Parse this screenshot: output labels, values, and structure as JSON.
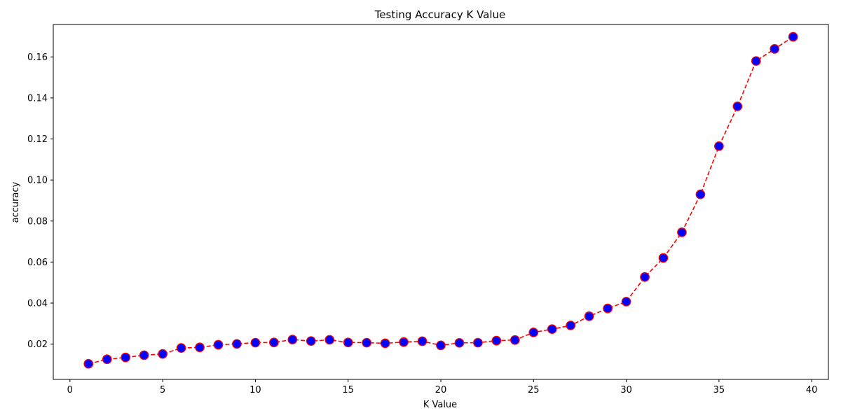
{
  "chart_data": {
    "type": "line",
    "title": "Testing Accuracy K Value",
    "xlabel": "K Value",
    "ylabel": "accuracy",
    "xlim": [
      -0.9,
      40.9
    ],
    "ylim": [
      0.0028,
      0.1758
    ],
    "xticks": [
      0,
      5,
      10,
      15,
      20,
      25,
      30,
      35,
      40
    ],
    "yticks": [
      0.02,
      0.04,
      0.06,
      0.08,
      0.1,
      0.12,
      0.14,
      0.16
    ],
    "ytick_labels": [
      "0.02",
      "0.04",
      "0.06",
      "0.08",
      "0.10",
      "0.12",
      "0.14",
      "0.16"
    ],
    "grid": false,
    "series": [
      {
        "line_color": "#ff0000",
        "line_style": "dashed",
        "marker": "circle",
        "marker_face_color": "#0000ff",
        "marker_edge_color": "#ff0000",
        "x": [
          1,
          2,
          3,
          4,
          5,
          6,
          7,
          8,
          9,
          10,
          11,
          12,
          13,
          14,
          15,
          16,
          17,
          18,
          19,
          20,
          21,
          22,
          23,
          24,
          25,
          26,
          27,
          28,
          29,
          30,
          31,
          32,
          33,
          34,
          35,
          36,
          37,
          38,
          39
        ],
        "y": [
          0.0104,
          0.0126,
          0.0135,
          0.0146,
          0.0152,
          0.0181,
          0.0184,
          0.0197,
          0.0201,
          0.0207,
          0.0208,
          0.0222,
          0.0215,
          0.0221,
          0.0208,
          0.0207,
          0.0204,
          0.021,
          0.0214,
          0.0194,
          0.0206,
          0.0207,
          0.0217,
          0.022,
          0.0257,
          0.0273,
          0.0291,
          0.0336,
          0.0374,
          0.0407,
          0.0527,
          0.062,
          0.0745,
          0.093,
          0.1165,
          0.1359,
          0.158,
          0.1639,
          0.1698
        ]
      }
    ]
  }
}
